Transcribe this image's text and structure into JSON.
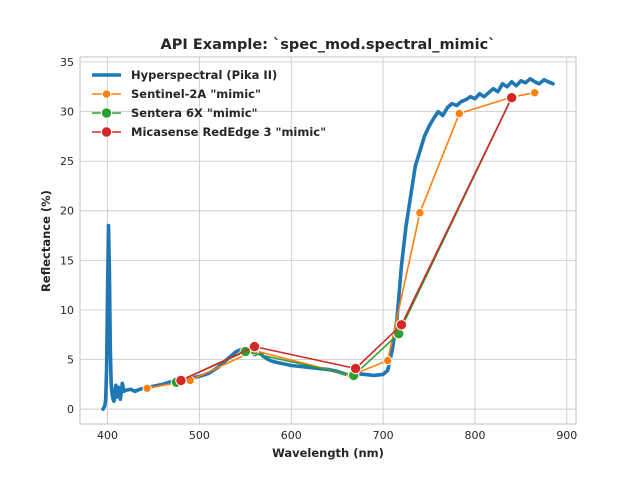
{
  "chart_data": {
    "type": "line",
    "title": "API Example: `spec_mod.spectral_mimic`",
    "xlabel": "Wavelength (nm)",
    "ylabel": "Reflectance (%)",
    "xlim": [
      370,
      910
    ],
    "ylim": [
      -1.5,
      35.5
    ],
    "xticks": [
      400,
      500,
      600,
      700,
      800,
      900
    ],
    "yticks": [
      0,
      5,
      10,
      15,
      20,
      25,
      30,
      35
    ],
    "grid": true,
    "legend_position": "top-left",
    "series": [
      {
        "name": "Hyperspectral (Pika II)",
        "color": "#1f77b4",
        "marker": "none",
        "x": [
          395,
          397,
          398,
          399,
          400,
          401,
          402,
          403,
          404,
          405,
          406,
          407,
          408,
          409,
          410,
          412,
          414,
          416,
          418,
          420,
          425,
          430,
          435,
          440,
          445,
          450,
          460,
          470,
          480,
          490,
          500,
          510,
          520,
          530,
          540,
          545,
          550,
          555,
          560,
          565,
          570,
          575,
          580,
          590,
          600,
          610,
          620,
          630,
          640,
          650,
          660,
          670,
          680,
          690,
          700,
          705,
          710,
          715,
          720,
          725,
          730,
          735,
          740,
          745,
          750,
          755,
          760,
          765,
          770,
          775,
          780,
          785,
          790,
          795,
          800,
          805,
          810,
          815,
          820,
          825,
          830,
          835,
          840,
          845,
          850,
          855,
          860,
          865,
          870,
          875,
          880,
          885
        ],
        "y": [
          0.0,
          0.3,
          1.0,
          4.0,
          12.0,
          18.5,
          14.0,
          6.0,
          2.5,
          1.5,
          1.0,
          0.8,
          1.6,
          2.4,
          1.2,
          2.2,
          1.0,
          2.6,
          1.8,
          1.9,
          2.0,
          1.8,
          2.0,
          2.1,
          2.2,
          2.3,
          2.5,
          2.8,
          2.9,
          3.1,
          3.3,
          3.6,
          4.2,
          5.0,
          5.8,
          6.0,
          5.8,
          6.0,
          5.5,
          5.7,
          5.3,
          5.0,
          4.8,
          4.6,
          4.4,
          4.3,
          4.2,
          4.1,
          4.0,
          3.8,
          3.5,
          3.6,
          3.5,
          3.4,
          3.5,
          3.9,
          6.0,
          9.0,
          14.5,
          18.5,
          21.5,
          24.5,
          26.0,
          27.5,
          28.5,
          29.3,
          30.0,
          29.6,
          30.4,
          30.8,
          30.6,
          31.0,
          31.2,
          31.5,
          31.3,
          31.8,
          31.5,
          31.9,
          32.3,
          32.0,
          32.8,
          32.5,
          33.0,
          32.6,
          33.1,
          32.9,
          33.3,
          33.0,
          32.8,
          33.2,
          33.0,
          32.8
        ]
      },
      {
        "name": "Sentinel-2A \"mimic\"",
        "color": "#ff7f0e",
        "marker": "o",
        "x": [
          443,
          490,
          560,
          665,
          705,
          740,
          783,
          842,
          865
        ],
        "y": [
          2.1,
          2.9,
          5.9,
          3.4,
          4.9,
          19.8,
          29.8,
          31.5,
          31.9
        ]
      },
      {
        "name": "Sentera 6X \"mimic\"",
        "color": "#2ca02c",
        "marker": "o",
        "x": [
          475,
          550,
          668,
          717,
          840
        ],
        "y": [
          2.7,
          5.8,
          3.4,
          7.6,
          31.4
        ]
      },
      {
        "name": "Micasense RedEdge 3 \"mimic\"",
        "color": "#d62728",
        "marker": "o",
        "x": [
          480,
          560,
          670,
          720,
          840
        ],
        "y": [
          2.9,
          6.3,
          4.1,
          8.5,
          31.4
        ]
      }
    ]
  }
}
